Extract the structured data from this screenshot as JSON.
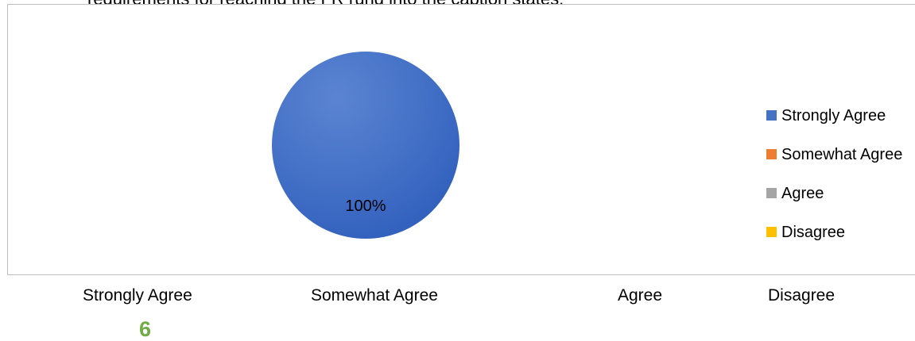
{
  "top_text": "requirements for reaching the FR rung into the caption states.",
  "chart_data": {
    "type": "pie",
    "categories": [
      "Strongly Agree",
      "Somewhat Agree",
      "Agree",
      "Disagree"
    ],
    "values": [
      100,
      0,
      0,
      0
    ],
    "data_labels": [
      "100%"
    ],
    "colors": [
      "#4472c4",
      "#ed7d31",
      "#a5a5a5",
      "#ffc000"
    ],
    "legend_position": "right"
  },
  "responses": [
    {
      "label": "Strongly Agree",
      "count": "6"
    },
    {
      "label": "Somewhat Agree"
    },
    {
      "label": "Agree"
    },
    {
      "label": "Disagree"
    }
  ]
}
